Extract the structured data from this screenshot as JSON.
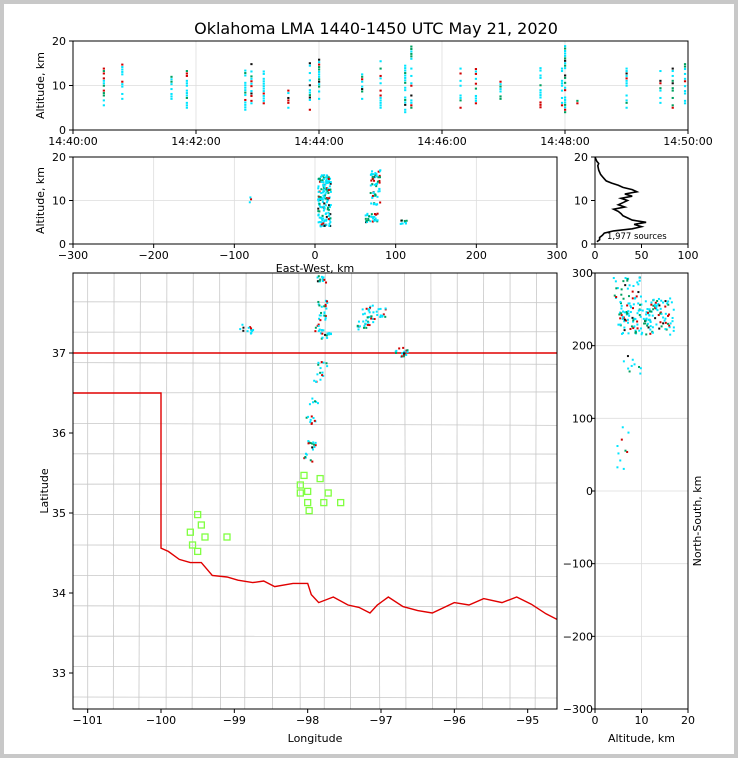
{
  "title": "Oklahoma LMA 1440-1450 UTC May 21, 2020",
  "colors": {
    "frame": "#c8c8c8",
    "state_border": "#e00000",
    "county_lines": "#c8c8c8",
    "station_marker": "#80ff40",
    "density_low": "#00e5ff",
    "density_mid": "#00a060",
    "density_high": "#d00000",
    "density_max": "#101010"
  },
  "chart_data": [
    {
      "id": "time_height",
      "type": "scatter",
      "ylabel": "Altitude, km",
      "xlabel": "",
      "xlim": [
        "14:40:00",
        "14:50:00"
      ],
      "ylim": [
        0,
        20
      ],
      "x_ticks": [
        "14:40:00",
        "14:42:00",
        "14:44:00",
        "14:46:00",
        "14:48:00",
        "14:50:00"
      ],
      "y_ticks": [
        0,
        10,
        20
      ],
      "grid": true,
      "columns_minutes": [
        0.5,
        0.8,
        1.6,
        1.85,
        2.8,
        2.9,
        3.1,
        3.5,
        3.85,
        4.0,
        4.7,
        5.0,
        5.4,
        5.5,
        6.3,
        6.55,
        6.95,
        7.6,
        7.95,
        8.0,
        8.2,
        9.0,
        9.55,
        9.75,
        9.95
      ],
      "columns_alt_range_km": [
        [
          5,
          14
        ],
        [
          7,
          15
        ],
        [
          7,
          12
        ],
        [
          5,
          16
        ],
        [
          4,
          15
        ],
        [
          6,
          15
        ],
        [
          6,
          14
        ],
        [
          5,
          12
        ],
        [
          4,
          16
        ],
        [
          7,
          16
        ],
        [
          7,
          13
        ],
        [
          5,
          16
        ],
        [
          4,
          15
        ],
        [
          5,
          19
        ],
        [
          5,
          14
        ],
        [
          6,
          14
        ],
        [
          7,
          12
        ],
        [
          4,
          16
        ],
        [
          5,
          14
        ],
        [
          4,
          19
        ],
        [
          6,
          8
        ],
        [
          5,
          14
        ],
        [
          5,
          14
        ],
        [
          5,
          14
        ],
        [
          6,
          15
        ]
      ]
    },
    {
      "id": "ew_height",
      "type": "scatter",
      "xlabel": "East-West, km",
      "ylabel": "Altitude, km",
      "xlim": [
        -300,
        300
      ],
      "ylim": [
        0,
        20
      ],
      "x_ticks": [
        -300,
        -200,
        -100,
        0,
        100,
        200,
        300
      ],
      "y_ticks": [
        0,
        10,
        20
      ],
      "grid": true
    },
    {
      "id": "alt_hist",
      "type": "line",
      "xlim": [
        0,
        100
      ],
      "ylim": [
        0,
        20
      ],
      "x_ticks": [
        0,
        50,
        100
      ],
      "y_ticks": [
        0,
        10,
        20
      ],
      "annotation": "1,977 sources",
      "curve_points": [
        [
          2,
          0.5
        ],
        [
          5,
          1
        ],
        [
          5,
          1.5
        ],
        [
          8,
          2
        ],
        [
          10,
          2.5
        ],
        [
          20,
          3
        ],
        [
          40,
          3.5
        ],
        [
          50,
          4
        ],
        [
          42,
          4.5
        ],
        [
          55,
          5
        ],
        [
          40,
          5.5
        ],
        [
          35,
          6
        ],
        [
          30,
          6.5
        ],
        [
          28,
          7
        ],
        [
          25,
          7.5
        ],
        [
          20,
          8
        ],
        [
          32,
          8.5
        ],
        [
          25,
          9
        ],
        [
          30,
          9.5
        ],
        [
          35,
          10
        ],
        [
          28,
          10.5
        ],
        [
          40,
          11
        ],
        [
          32,
          11.5
        ],
        [
          45,
          12
        ],
        [
          40,
          12.5
        ],
        [
          30,
          13
        ],
        [
          25,
          13.5
        ],
        [
          18,
          14
        ],
        [
          12,
          14.5
        ],
        [
          10,
          15
        ],
        [
          8,
          15.5
        ],
        [
          6,
          16
        ],
        [
          4,
          17
        ],
        [
          3,
          18
        ],
        [
          4,
          18.5
        ],
        [
          2,
          19
        ],
        [
          1,
          19.5
        ],
        [
          0,
          20
        ]
      ]
    },
    {
      "id": "plan_view",
      "type": "scatter",
      "xlabel": "Longitude",
      "ylabel": "Latitude",
      "xlim": [
        -101.2,
        -94.6
      ],
      "ylim": [
        32.55,
        38.0
      ],
      "x_ticks": [
        -101,
        -100,
        -99,
        -98,
        -97,
        -96,
        -95
      ],
      "y_ticks": [
        33,
        34,
        35,
        36,
        37
      ],
      "stations": [
        [
          -99.6,
          34.76
        ],
        [
          -99.5,
          34.98
        ],
        [
          -99.45,
          34.85
        ],
        [
          -99.4,
          34.7
        ],
        [
          -99.57,
          34.6
        ],
        [
          -99.5,
          34.52
        ],
        [
          -99.1,
          34.7
        ],
        [
          -98.05,
          35.47
        ],
        [
          -98.1,
          35.35
        ],
        [
          -98.1,
          35.25
        ],
        [
          -98.0,
          35.27
        ],
        [
          -98.0,
          35.13
        ],
        [
          -97.98,
          35.03
        ],
        [
          -97.83,
          35.43
        ],
        [
          -97.78,
          35.13
        ],
        [
          -97.72,
          35.25
        ],
        [
          -97.55,
          35.13
        ]
      ],
      "sources_lonlat": [
        [
          -98.8,
          37.25
        ],
        [
          -98.85,
          37.3
        ],
        [
          -97.85,
          37.3
        ],
        [
          -97.8,
          37.45
        ],
        [
          -97.8,
          37.6
        ],
        [
          -97.8,
          37.9
        ],
        [
          -97.75,
          37.2
        ],
        [
          -97.8,
          36.85
        ],
        [
          -97.85,
          36.7
        ],
        [
          -97.9,
          36.4
        ],
        [
          -97.95,
          36.15
        ],
        [
          -97.95,
          35.85
        ],
        [
          -97.98,
          35.7
        ],
        [
          -97.2,
          37.5
        ],
        [
          -97.15,
          37.4
        ],
        [
          -97.1,
          37.55
        ],
        [
          -97.0,
          37.5
        ],
        [
          -97.25,
          37.35
        ],
        [
          -96.7,
          37.02
        ],
        [
          -96.75,
          37.0
        ]
      ]
    },
    {
      "id": "ns_height",
      "type": "scatter",
      "xlabel": "Altitude, km",
      "ylabel": "North-South, km",
      "xlim": [
        0,
        20
      ],
      "ylim": [
        -300,
        300
      ],
      "x_ticks": [
        0,
        10,
        20
      ],
      "y_ticks": [
        -300,
        -200,
        -100,
        0,
        100,
        200,
        300
      ],
      "grid": true
    }
  ]
}
